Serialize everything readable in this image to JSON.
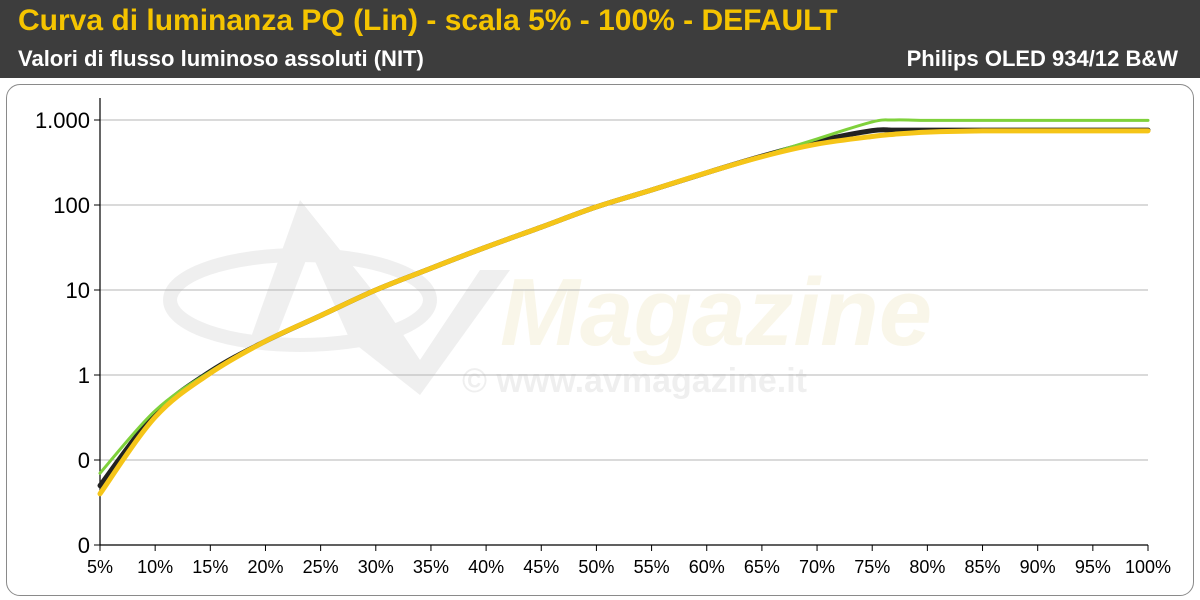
{
  "header": {
    "title": "Curva di luminanza PQ (Lin) - scala 5% - 100% - DEFAULT",
    "subtitle": "Valori di flusso luminoso assoluti (NIT)",
    "model": "Philips OLED 934/12 B&W"
  },
  "watermark": {
    "logo_text": "Magazine",
    "url_text": "© www.avmagazine.it"
  },
  "colors": {
    "header_bg": "#3d3d3d",
    "title": "#f5c400",
    "reference_line": "#222222",
    "green_series": "#7fd13b",
    "yellow_series": "#f5c518",
    "grid": "#b4b4b4"
  },
  "chart_data": {
    "type": "line",
    "yscale": "log",
    "grid": true,
    "legend": "none",
    "x_tick_labels": [
      "5%",
      "10%",
      "15%",
      "20%",
      "25%",
      "30%",
      "35%",
      "40%",
      "45%",
      "50%",
      "55%",
      "60%",
      "65%",
      "70%",
      "75%",
      "80%",
      "85%",
      "90%",
      "95%",
      "100%"
    ],
    "y_tick_labels": [
      "0",
      "0",
      "1",
      "10",
      "100",
      "1.000"
    ],
    "y_tick_values": [
      0.01,
      0.1,
      1,
      10,
      100,
      1000
    ],
    "x": [
      5,
      10,
      15,
      20,
      25,
      30,
      35,
      40,
      45,
      50,
      55,
      60,
      65,
      70,
      75,
      77,
      80,
      85,
      90,
      95,
      100
    ],
    "series": [
      {
        "key": "reference",
        "color": "#222222",
        "values": [
          0.05,
          0.35,
          1.1,
          2.5,
          5,
          10,
          18,
          32,
          55,
          95,
          150,
          240,
          375,
          560,
          750,
          760,
          760,
          760,
          760,
          760,
          760
        ]
      },
      {
        "key": "green",
        "color": "#7fd13b",
        "values": [
          0.07,
          0.38,
          1.1,
          2.5,
          5,
          10,
          18,
          32,
          55,
          95,
          150,
          240,
          375,
          600,
          950,
          1000,
          990,
          990,
          990,
          990,
          990
        ]
      },
      {
        "key": "yellow",
        "color": "#f5c518",
        "values": [
          0.04,
          0.32,
          1.05,
          2.5,
          5,
          10,
          18,
          32,
          55,
          95,
          150,
          240,
          370,
          520,
          640,
          680,
          720,
          745,
          745,
          745,
          745
        ]
      }
    ]
  }
}
